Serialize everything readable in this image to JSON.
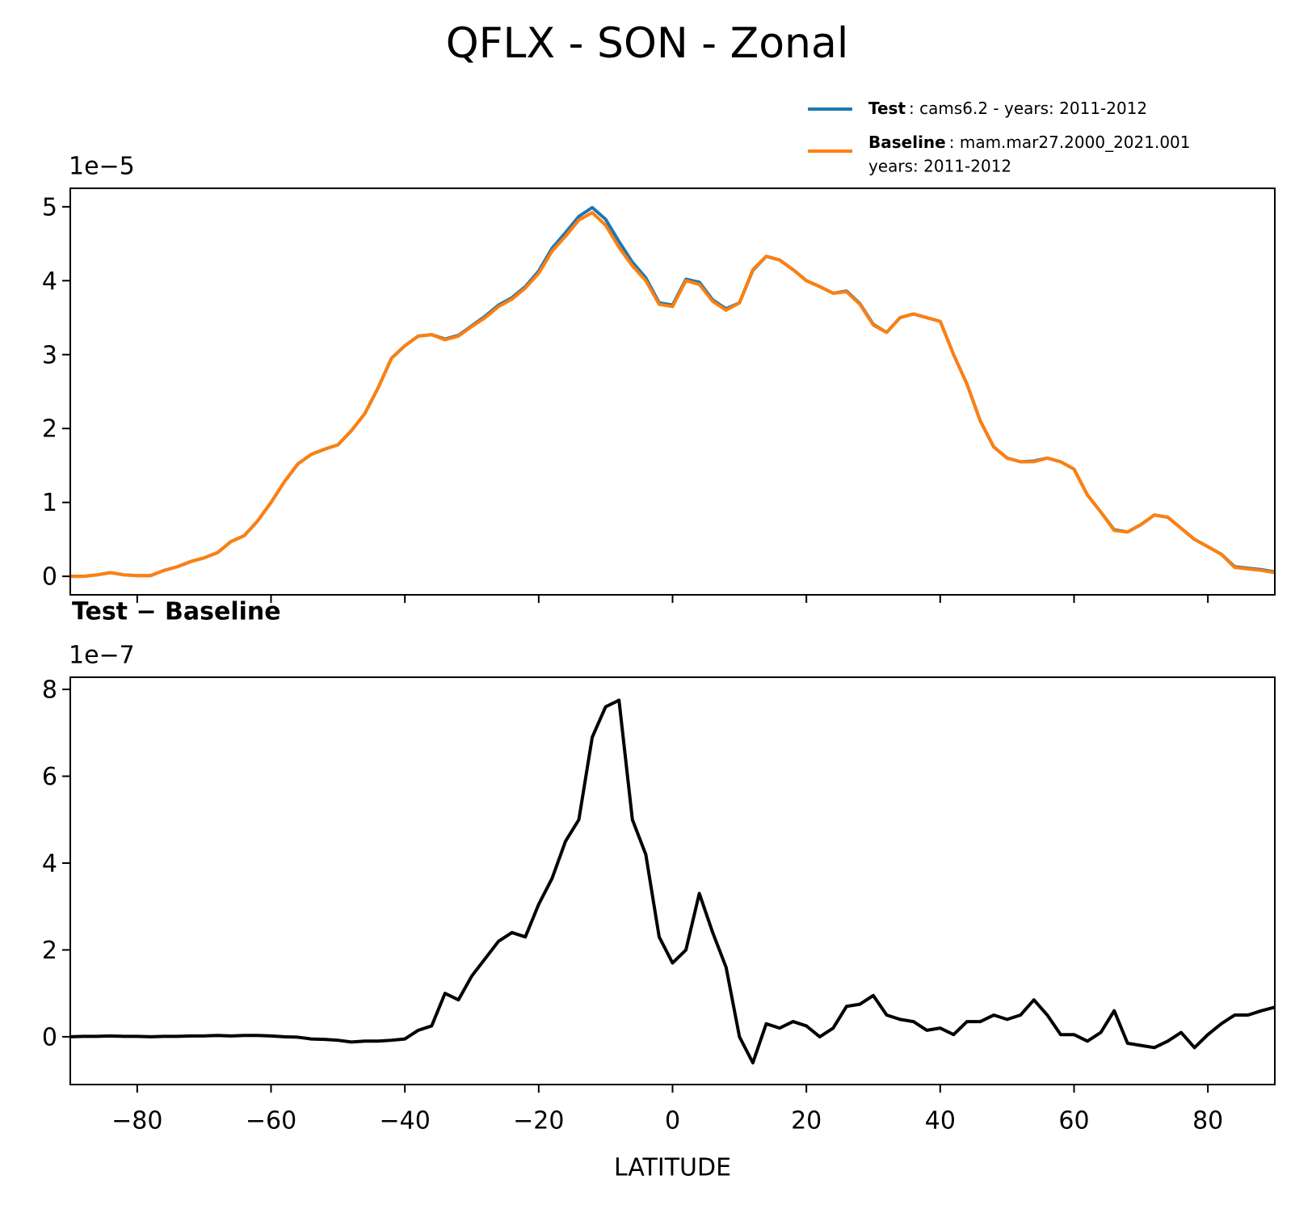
{
  "title": "QFLX - SON - Zonal",
  "chart_data": [
    {
      "type": "line",
      "offset_label": "1e−5",
      "legend": "upper right",
      "x": [
        -90,
        -88,
        -86,
        -84,
        -82,
        -80,
        -78,
        -76,
        -74,
        -72,
        -70,
        -68,
        -66,
        -64,
        -62,
        -60,
        -58,
        -56,
        -54,
        -52,
        -50,
        -48,
        -46,
        -44,
        -42,
        -40,
        -38,
        -36,
        -34,
        -32,
        -30,
        -28,
        -26,
        -24,
        -22,
        -20,
        -18,
        -16,
        -14,
        -12,
        -10,
        -8,
        -6,
        -4,
        -2,
        0,
        2,
        4,
        6,
        8,
        10,
        12,
        14,
        16,
        18,
        20,
        22,
        24,
        26,
        28,
        30,
        32,
        34,
        36,
        38,
        40,
        42,
        44,
        46,
        48,
        50,
        52,
        54,
        56,
        58,
        60,
        62,
        64,
        66,
        68,
        70,
        72,
        74,
        76,
        78,
        80,
        82,
        84,
        86,
        88,
        90
      ],
      "series": [
        {
          "name": "Test",
          "description": [
            ": cams6.2 - years: 2011-2012"
          ],
          "color": "#1f77b4",
          "values": [
            0,
            0,
            0.02,
            0.05,
            0.02,
            0.01,
            0.01,
            0.08,
            0.13,
            0.2,
            0.25,
            0.32,
            0.47,
            0.55,
            0.75,
            1.0,
            1.28,
            1.52,
            1.65,
            1.72,
            1.78,
            1.97,
            2.2,
            2.55,
            2.95,
            3.12,
            3.25,
            3.27,
            3.21,
            3.26,
            3.39,
            3.52,
            3.67,
            3.77,
            3.92,
            4.13,
            4.44,
            4.65,
            4.87,
            4.99,
            4.83,
            4.53,
            4.25,
            4.04,
            3.7,
            3.67,
            4.02,
            3.98,
            3.74,
            3.62,
            3.7,
            4.14,
            4.33,
            4.28,
            4.15,
            4.0,
            3.92,
            3.83,
            3.86,
            3.69,
            3.41,
            3.3,
            3.5,
            3.55,
            3.5,
            3.45,
            3.0,
            2.6,
            2.1,
            1.75,
            1.6,
            1.55,
            1.56,
            1.6,
            1.55,
            1.45,
            1.1,
            0.87,
            0.63,
            0.6,
            0.7,
            0.83,
            0.8,
            0.65,
            0.5,
            0.4,
            0.3,
            0.13,
            0.11,
            0.09,
            0.06
          ]
        },
        {
          "name": "Baseline",
          "description": [
            ": mam.mar27.2000_2021.001",
            "years: 2011-2012"
          ],
          "color": "#ff7f0e",
          "values": [
            0,
            0,
            0.02,
            0.05,
            0.02,
            0.01,
            0.01,
            0.08,
            0.13,
            0.2,
            0.25,
            0.32,
            0.47,
            0.55,
            0.75,
            1.0,
            1.28,
            1.52,
            1.65,
            1.72,
            1.78,
            1.97,
            2.2,
            2.55,
            2.95,
            3.12,
            3.25,
            3.27,
            3.2,
            3.25,
            3.38,
            3.5,
            3.65,
            3.75,
            3.9,
            4.1,
            4.4,
            4.6,
            4.82,
            4.92,
            4.75,
            4.45,
            4.2,
            4.0,
            3.68,
            3.65,
            4.0,
            3.95,
            3.72,
            3.6,
            3.7,
            4.15,
            4.33,
            4.28,
            4.15,
            4.0,
            3.92,
            3.83,
            3.85,
            3.68,
            3.4,
            3.3,
            3.5,
            3.55,
            3.5,
            3.45,
            3.0,
            2.6,
            2.1,
            1.75,
            1.6,
            1.55,
            1.55,
            1.6,
            1.55,
            1.45,
            1.1,
            0.87,
            0.62,
            0.6,
            0.7,
            0.83,
            0.8,
            0.65,
            0.5,
            0.4,
            0.3,
            0.12,
            0.1,
            0.08,
            0.05
          ]
        }
      ],
      "xlim": [
        -90,
        90
      ],
      "xticks": [
        -80,
        -60,
        -40,
        -20,
        0,
        20,
        40,
        60,
        80
      ],
      "ylim": [
        -0.25,
        5.25
      ],
      "yticks": [
        0,
        1,
        2,
        3,
        4,
        5
      ]
    },
    {
      "type": "line",
      "title": "Test − Baseline",
      "offset_label": "1e−7",
      "xlabel": "LATITUDE",
      "x": [
        -90,
        -88,
        -86,
        -84,
        -82,
        -80,
        -78,
        -76,
        -74,
        -72,
        -70,
        -68,
        -66,
        -64,
        -62,
        -60,
        -58,
        -56,
        -54,
        -52,
        -50,
        -48,
        -46,
        -44,
        -42,
        -40,
        -38,
        -36,
        -34,
        -32,
        -30,
        -28,
        -26,
        -24,
        -22,
        -20,
        -18,
        -16,
        -14,
        -12,
        -10,
        -8,
        -6,
        -4,
        -2,
        0,
        2,
        4,
        6,
        8,
        10,
        12,
        14,
        16,
        18,
        20,
        22,
        24,
        26,
        28,
        30,
        32,
        34,
        36,
        38,
        40,
        42,
        44,
        46,
        48,
        50,
        52,
        54,
        56,
        58,
        60,
        62,
        64,
        66,
        68,
        70,
        72,
        74,
        76,
        78,
        80,
        82,
        84,
        86,
        88,
        90
      ],
      "series": [
        {
          "name": "Test − Baseline",
          "color": "#000000",
          "values": [
            0,
            0.01,
            0.01,
            0.02,
            0.01,
            0.01,
            0,
            0.01,
            0.01,
            0.02,
            0.02,
            0.03,
            0.02,
            0.03,
            0.03,
            0.02,
            0,
            -0.01,
            -0.05,
            -0.06,
            -0.08,
            -0.12,
            -0.1,
            -0.1,
            -0.08,
            -0.05,
            0.15,
            0.25,
            1.0,
            0.85,
            1.4,
            1.8,
            2.2,
            2.4,
            2.3,
            3.05,
            3.65,
            4.5,
            5.0,
            6.9,
            7.6,
            7.75,
            5.0,
            4.2,
            2.3,
            1.7,
            2.0,
            3.3,
            2.4,
            1.6,
            0.0,
            -0.6,
            0.3,
            0.2,
            0.35,
            0.25,
            0.0,
            0.2,
            0.7,
            0.75,
            0.95,
            0.5,
            0.4,
            0.35,
            0.15,
            0.2,
            0.05,
            0.35,
            0.35,
            0.5,
            0.4,
            0.5,
            0.85,
            0.5,
            0.05,
            0.05,
            -0.1,
            0.1,
            0.6,
            -0.15,
            -0.2,
            -0.25,
            -0.1,
            0.1,
            -0.25,
            0.05,
            0.3,
            0.5,
            0.5,
            0.6,
            0.68
          ]
        }
      ],
      "xlim": [
        -90,
        90
      ],
      "xticks": [
        {
          "value": -80,
          "label": "−80"
        },
        {
          "value": -60,
          "label": "−60"
        },
        {
          "value": -40,
          "label": "−40"
        },
        {
          "value": -20,
          "label": "−20"
        },
        0,
        20,
        40,
        60,
        80
      ],
      "ylim": [
        -1.1,
        8.28
      ],
      "yticks": [
        0,
        2,
        4,
        6,
        8
      ]
    }
  ]
}
